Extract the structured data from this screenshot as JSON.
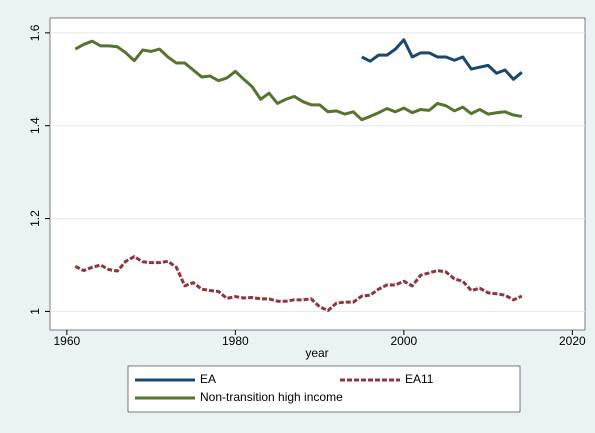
{
  "chart_data": {
    "type": "line",
    "xlabel": "year",
    "x": [
      1961,
      1962,
      1963,
      1964,
      1965,
      1966,
      1967,
      1968,
      1969,
      1970,
      1971,
      1972,
      1973,
      1974,
      1975,
      1976,
      1977,
      1978,
      1979,
      1980,
      1981,
      1982,
      1983,
      1984,
      1985,
      1986,
      1987,
      1988,
      1989,
      1990,
      1991,
      1992,
      1993,
      1994,
      1995,
      1996,
      1997,
      1998,
      1999,
      2000,
      2001,
      2002,
      2003,
      2004,
      2005,
      2006,
      2007,
      2008,
      2009,
      2010,
      2011,
      2012,
      2013,
      2014
    ],
    "series": [
      {
        "name": "EA",
        "color": "#1a476f",
        "dash": false,
        "values": [
          null,
          null,
          null,
          null,
          null,
          null,
          null,
          null,
          null,
          null,
          null,
          null,
          null,
          null,
          null,
          null,
          null,
          null,
          null,
          null,
          null,
          null,
          null,
          null,
          null,
          null,
          null,
          null,
          null,
          null,
          null,
          null,
          null,
          null,
          1.548,
          1.539,
          1.552,
          1.552,
          1.565,
          1.585,
          1.548,
          1.557,
          1.557,
          1.548,
          1.548,
          1.541,
          1.548,
          1.522,
          1.526,
          1.53,
          1.513,
          1.52,
          1.5,
          1.515
        ]
      },
      {
        "name": "EA11",
        "color": "#90353b",
        "dash": true,
        "values": [
          1.097,
          1.088,
          1.095,
          1.1,
          1.09,
          1.087,
          1.108,
          1.118,
          1.107,
          1.105,
          1.105,
          1.108,
          1.095,
          1.055,
          1.062,
          1.048,
          1.045,
          1.043,
          1.028,
          1.032,
          1.029,
          1.03,
          1.027,
          1.027,
          1.022,
          1.022,
          1.025,
          1.025,
          1.027,
          1.01,
          1.002,
          1.018,
          1.02,
          1.02,
          1.033,
          1.035,
          1.048,
          1.057,
          1.057,
          1.065,
          1.055,
          1.078,
          1.083,
          1.088,
          1.085,
          1.07,
          1.065,
          1.045,
          1.05,
          1.04,
          1.038,
          1.035,
          1.025,
          1.033
        ]
      },
      {
        "name": "Non-transition high income",
        "color": "#55752f",
        "dash": false,
        "values": [
          1.565,
          1.575,
          1.582,
          1.572,
          1.572,
          1.57,
          1.557,
          1.54,
          1.563,
          1.56,
          1.565,
          1.548,
          1.535,
          1.535,
          1.52,
          1.505,
          1.507,
          1.497,
          1.503,
          1.517,
          1.5,
          1.484,
          1.457,
          1.47,
          1.448,
          1.457,
          1.463,
          1.452,
          1.445,
          1.445,
          1.43,
          1.432,
          1.425,
          1.43,
          1.413,
          1.42,
          1.428,
          1.437,
          1.43,
          1.438,
          1.428,
          1.435,
          1.433,
          1.448,
          1.443,
          1.432,
          1.44,
          1.426,
          1.435,
          1.425,
          1.428,
          1.43,
          1.423,
          1.42
        ]
      }
    ],
    "xlim": [
      1958,
      2021.5
    ],
    "xticks": [
      1960,
      1980,
      2000,
      2020
    ],
    "ylim": [
      0.96,
      1.632
    ],
    "yticks": [
      1,
      1.2,
      1.4,
      1.6
    ],
    "grid": true,
    "legend": "bottom"
  }
}
